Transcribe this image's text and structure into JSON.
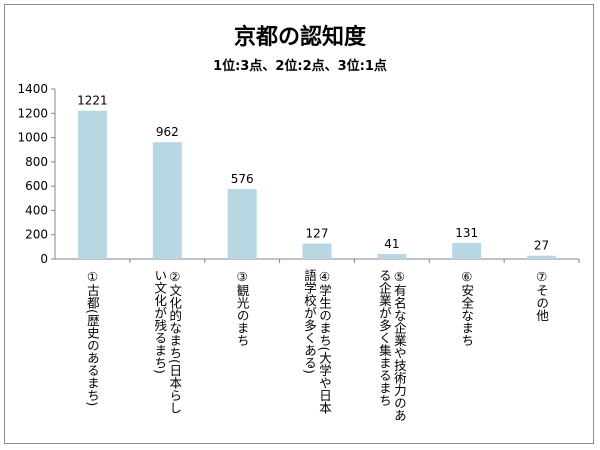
{
  "chart_data": {
    "type": "bar",
    "title": "京都の認知度",
    "subtitle": "1位:3点、2位:2点、3位:1点",
    "categories": [
      "①古都(歴史のあるまち)",
      "②文化的なまち(日本らしい文化が残るまち)",
      "③観光のまち",
      "④学生のまち(大学や日本語学校が多くある)",
      "⑤有名な企業や技術力のある企業が多く集まるまち",
      "⑥安全なまち",
      "⑦その他"
    ],
    "category_columns": [
      [
        "①古都(歴史のあるまち)"
      ],
      [
        "②文化的なまち(日本らし",
        "い文化が残るまち)"
      ],
      [
        "③観光のまち"
      ],
      [
        "④学生のまち(大学や日本",
        "語学校が多くある)"
      ],
      [
        "⑤有名な企業や技術力のあ",
        "る企業が多く集まるまち"
      ],
      [
        "⑥安全なまち"
      ],
      [
        "⑦その他"
      ]
    ],
    "values": [
      1221,
      962,
      576,
      127,
      41,
      131,
      27
    ],
    "ylim": [
      0,
      1400
    ],
    "yticks": [
      0,
      200,
      400,
      600,
      800,
      1000,
      1200,
      1400
    ],
    "gridlines": false,
    "legend": "none",
    "bar_color": "#b7d7e3"
  }
}
